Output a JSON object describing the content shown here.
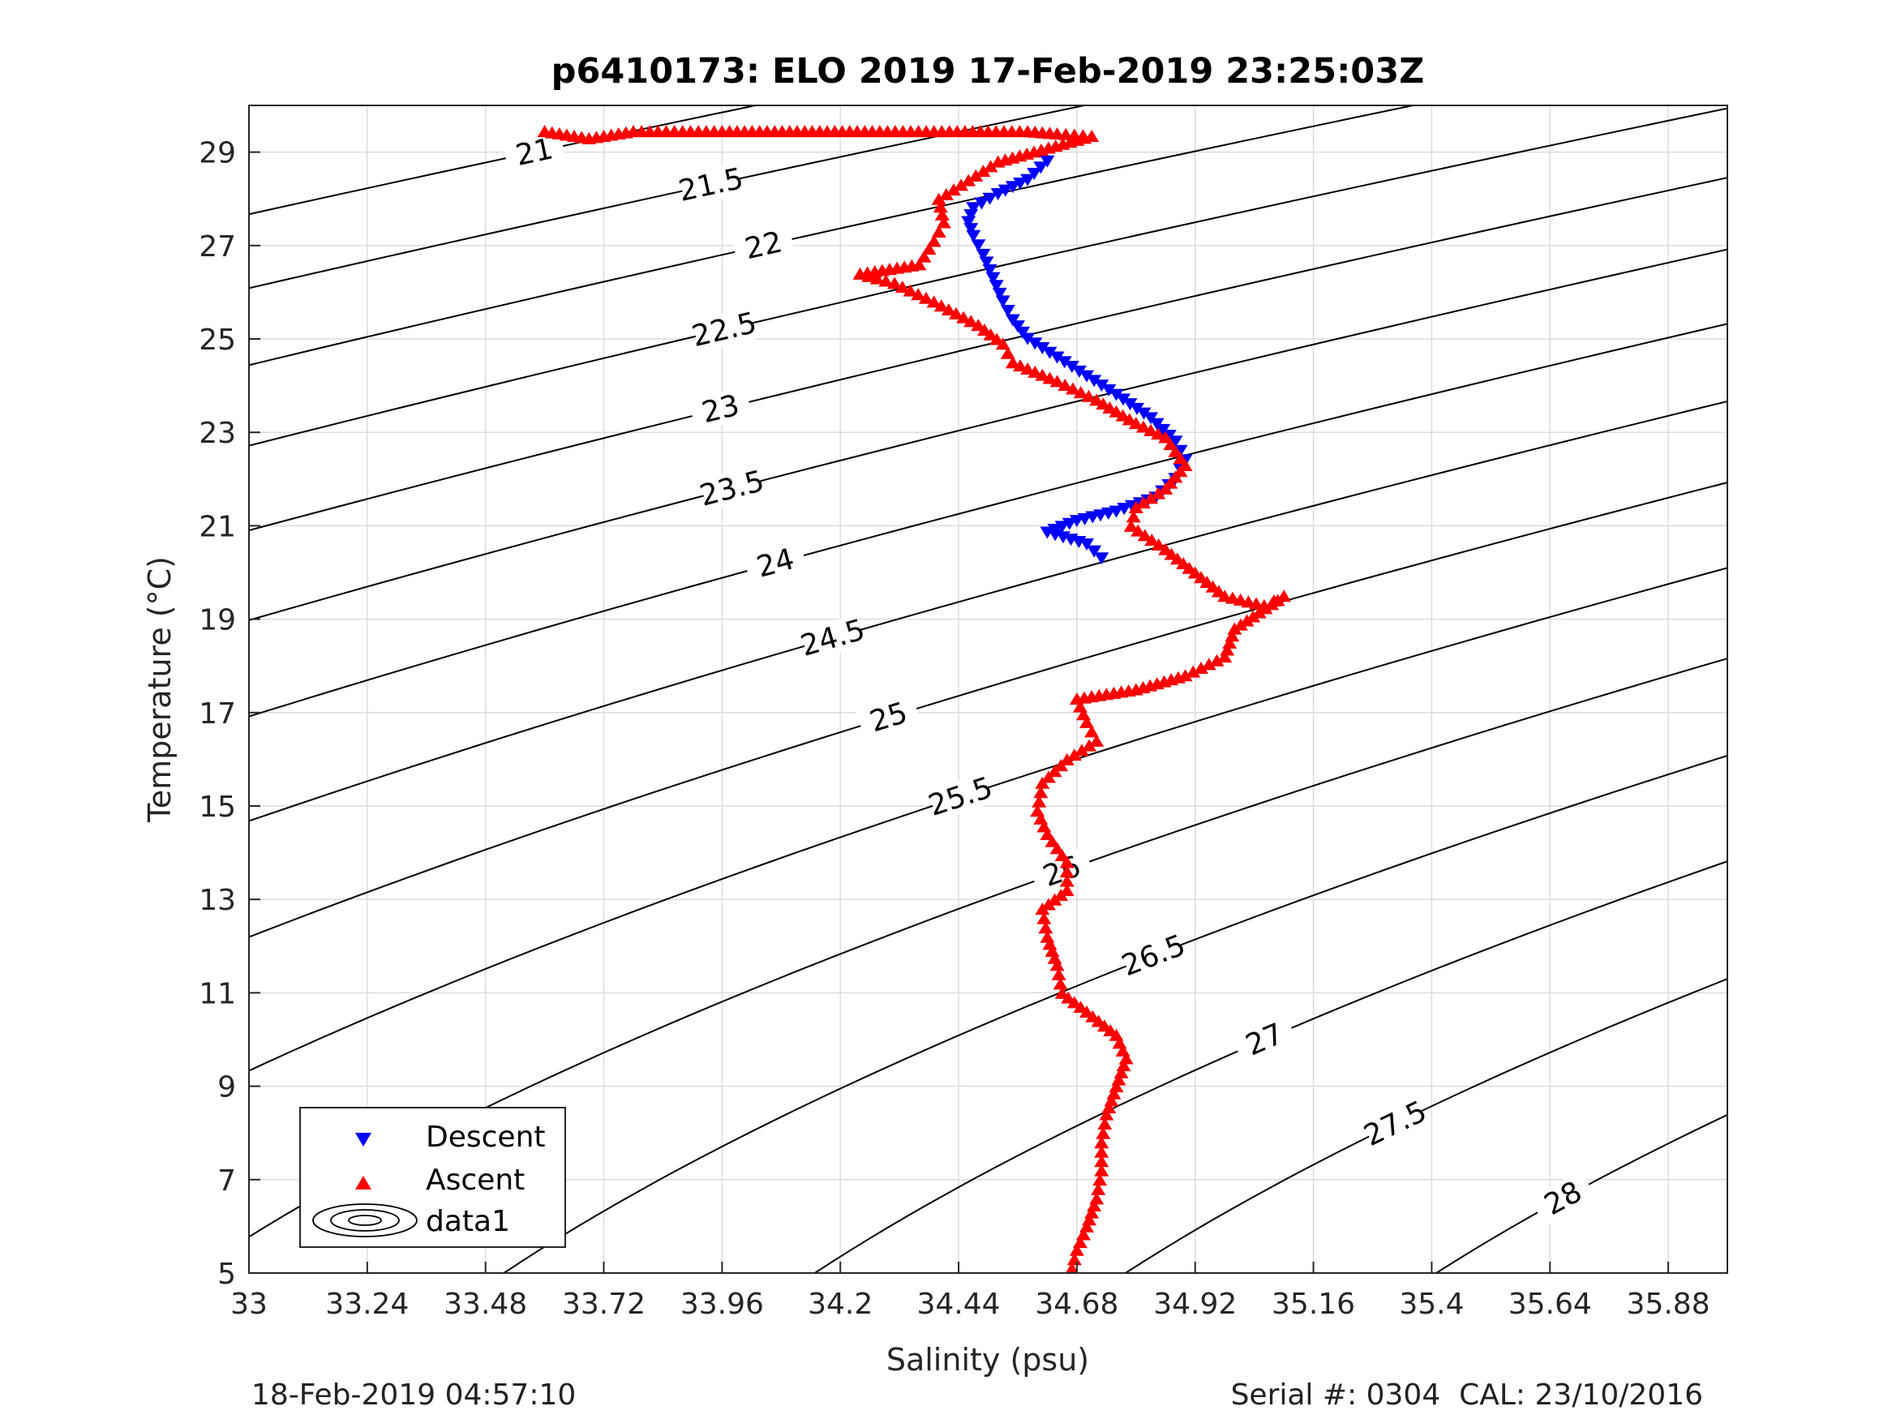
{
  "chart_data": {
    "type": "scatter",
    "title": "p6410173: ELO 2019 17-Feb-2019 23:25:03Z",
    "xlabel": "Salinity (psu)",
    "ylabel": "Temperature (°C)",
    "xlim": [
      33,
      36.0
    ],
    "ylim": [
      5,
      30
    ],
    "x_ticks": [
      "33",
      "33.24",
      "33.48",
      "33.72",
      "33.96",
      "34.2",
      "34.44",
      "34.68",
      "34.92",
      "35.16",
      "35.4",
      "35.64",
      "35.88"
    ],
    "y_ticks": [
      "5",
      "7",
      "9",
      "11",
      "13",
      "15",
      "17",
      "19",
      "21",
      "23",
      "25",
      "27",
      "29"
    ],
    "grid": true,
    "legend_position": "bottom-left",
    "series": [
      {
        "name": "Descent",
        "marker": "triangle-down",
        "color": "#0000ff",
        "points": [
          [
            34.62,
            28.8
          ],
          [
            34.58,
            28.4
          ],
          [
            34.52,
            28.1
          ],
          [
            34.47,
            27.8
          ],
          [
            34.46,
            27.5
          ],
          [
            34.47,
            27.2
          ],
          [
            34.49,
            26.8
          ],
          [
            34.51,
            26.3
          ],
          [
            34.53,
            25.8
          ],
          [
            34.55,
            25.4
          ],
          [
            34.58,
            25.0
          ],
          [
            34.64,
            24.6
          ],
          [
            34.7,
            24.2
          ],
          [
            34.76,
            23.8
          ],
          [
            34.83,
            23.3
          ],
          [
            34.88,
            22.8
          ],
          [
            34.9,
            22.4
          ],
          [
            34.88,
            22.0
          ],
          [
            34.84,
            21.6
          ],
          [
            34.76,
            21.3
          ],
          [
            34.68,
            21.1
          ],
          [
            34.62,
            20.85
          ],
          [
            34.7,
            20.6
          ],
          [
            34.73,
            20.3
          ]
        ]
      },
      {
        "name": "Ascent",
        "marker": "triangle-up",
        "color": "#ff0000",
        "points": [
          [
            33.6,
            29.45
          ],
          [
            33.69,
            29.3
          ],
          [
            33.72,
            29.35
          ],
          [
            33.78,
            29.45
          ],
          [
            33.88,
            29.45
          ],
          [
            33.96,
            29.45
          ],
          [
            34.28,
            29.45
          ],
          [
            34.5,
            29.45
          ],
          [
            34.58,
            29.45
          ],
          [
            34.64,
            29.4
          ],
          [
            34.71,
            29.35
          ],
          [
            34.52,
            28.8
          ],
          [
            34.46,
            28.4
          ],
          [
            34.4,
            28.0
          ],
          [
            34.41,
            27.5
          ],
          [
            34.39,
            27.1
          ],
          [
            34.36,
            26.6
          ],
          [
            34.24,
            26.4
          ],
          [
            34.31,
            26.2
          ],
          [
            34.39,
            25.8
          ],
          [
            34.48,
            25.3
          ],
          [
            34.53,
            24.9
          ],
          [
            34.55,
            24.5
          ],
          [
            34.64,
            24.1
          ],
          [
            34.72,
            23.7
          ],
          [
            34.8,
            23.2
          ],
          [
            34.86,
            22.9
          ],
          [
            34.9,
            22.3
          ],
          [
            34.86,
            21.8
          ],
          [
            34.8,
            21.4
          ],
          [
            34.79,
            21.0
          ],
          [
            34.86,
            20.5
          ],
          [
            34.92,
            20.0
          ],
          [
            34.98,
            19.5
          ],
          [
            35.06,
            19.3
          ],
          [
            35.1,
            19.5
          ],
          [
            35.0,
            18.8
          ],
          [
            34.98,
            18.2
          ],
          [
            34.9,
            17.8
          ],
          [
            34.8,
            17.5
          ],
          [
            34.68,
            17.3
          ],
          [
            34.7,
            16.8
          ],
          [
            34.72,
            16.4
          ],
          [
            34.66,
            16.0
          ],
          [
            34.61,
            15.5
          ],
          [
            34.6,
            14.9
          ],
          [
            34.62,
            14.4
          ],
          [
            34.66,
            13.8
          ],
          [
            34.66,
            13.2
          ],
          [
            34.61,
            12.8
          ],
          [
            34.62,
            12.2
          ],
          [
            34.64,
            11.6
          ],
          [
            34.65,
            11.0
          ],
          [
            34.7,
            10.6
          ],
          [
            34.76,
            10.1
          ],
          [
            34.78,
            9.6
          ],
          [
            34.76,
            9.0
          ],
          [
            34.74,
            8.4
          ],
          [
            34.73,
            7.8
          ],
          [
            34.73,
            7.2
          ],
          [
            34.72,
            6.6
          ],
          [
            34.7,
            6.0
          ],
          [
            34.68,
            5.5
          ],
          [
            34.67,
            5.1
          ]
        ]
      },
      {
        "name": "data1",
        "type": "contour",
        "color": "#000000",
        "levels": [
          21,
          21.5,
          22,
          22.5,
          23,
          23.5,
          24,
          24.5,
          25,
          25.5,
          26,
          26.5,
          27,
          27.5,
          28
        ]
      }
    ]
  },
  "footer": {
    "timestamp": "18-Feb-2019 04:57:10",
    "serial_cal": "Serial #: 0304  CAL: 23/10/2016"
  }
}
